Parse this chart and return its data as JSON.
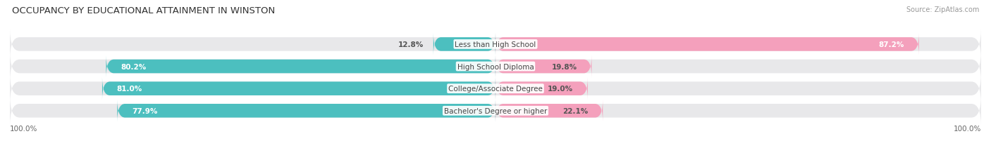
{
  "title": "OCCUPANCY BY EDUCATIONAL ATTAINMENT IN WINSTON",
  "source": "Source: ZipAtlas.com",
  "categories": [
    "Less than High School",
    "High School Diploma",
    "College/Associate Degree",
    "Bachelor's Degree or higher"
  ],
  "owner_pct": [
    12.8,
    80.2,
    81.0,
    77.9
  ],
  "renter_pct": [
    87.2,
    19.8,
    19.0,
    22.1
  ],
  "owner_color": "#4CBFBF",
  "renter_color": "#F4A0BC",
  "bg_bar_color": "#E8E8EA",
  "background_color": "#FFFFFF",
  "bar_height": 0.62,
  "title_fontsize": 9.5,
  "label_fontsize": 7.5,
  "pct_fontsize": 7.5,
  "tick_fontsize": 7.5,
  "legend_fontsize": 8,
  "source_fontsize": 7
}
